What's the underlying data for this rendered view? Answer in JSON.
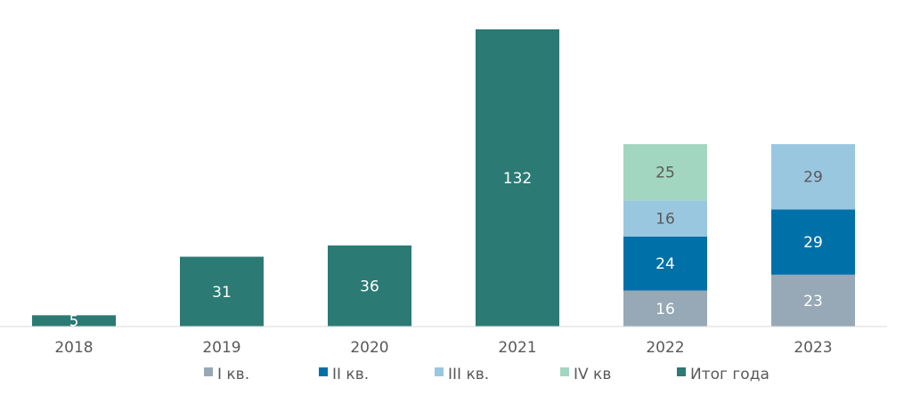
{
  "chart_data": {
    "type": "bar",
    "stacked": true,
    "categories": [
      "2018",
      "2019",
      "2020",
      "2021",
      "2022",
      "2023"
    ],
    "series": [
      {
        "name": "I кв.",
        "color": "#97a9b6",
        "values": [
          null,
          null,
          null,
          null,
          16,
          23
        ]
      },
      {
        "name": "II кв.",
        "color": "#0070a8",
        "values": [
          null,
          null,
          null,
          null,
          24,
          29
        ]
      },
      {
        "name": "III кв.",
        "color": "#9ac7e0",
        "values": [
          null,
          null,
          null,
          null,
          16,
          29
        ]
      },
      {
        "name": "IV кв",
        "color": "#a3d6c0",
        "values": [
          null,
          null,
          null,
          null,
          25,
          null
        ]
      },
      {
        "name": "Итог года",
        "color": "#2c7a74",
        "values": [
          5,
          31,
          36,
          132,
          null,
          null
        ]
      }
    ],
    "ylim": [
      0,
      140
    ],
    "grid": false,
    "legend_position": "bottom"
  }
}
